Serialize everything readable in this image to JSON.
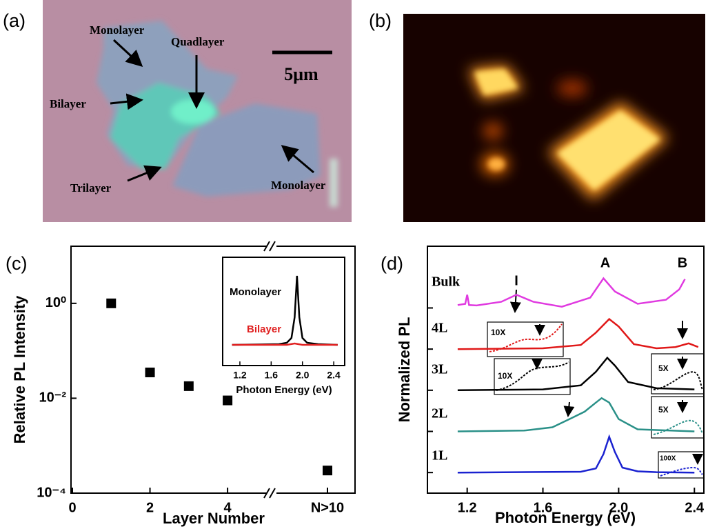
{
  "panel_labels": [
    "(a)",
    "(b)",
    "(c)",
    "(d)"
  ],
  "image_a": {
    "labels": [
      "Monolayer",
      "Quadlayer",
      "Bilayer",
      "Trilayer",
      "Monolayer"
    ],
    "scale_bar": "5μm"
  },
  "chart_data": [
    {
      "type": "scatter",
      "x_label": "Layer Number",
      "y_label": "Relative PL Intensity",
      "x": [
        1,
        2,
        3,
        4,
        "N>10"
      ],
      "values": [
        1,
        0.035,
        0.018,
        0.009,
        0.0003
      ],
      "color": "#000000",
      "log_y": true,
      "ylim": [
        0.0001,
        16
      ],
      "yticks": [
        {
          "value": 1,
          "label": "10⁰"
        },
        {
          "value": 0.01,
          "label": "10⁻²"
        },
        {
          "value": 0.0001,
          "label": "10⁻⁴"
        }
      ],
      "xlim": [
        0,
        5.1
      ],
      "xticks": [
        0,
        2,
        4,
        "N>10"
      ],
      "inset": {
        "type": "line",
        "x_label": "Photon Energy (eV)",
        "xlim": [
          0.98,
          2.54
        ],
        "xticks": [
          1.2,
          1.6,
          {
            "value": 2,
            "label": "2.0"
          },
          2.4
        ],
        "ylim": [
          -0.3,
          1.27
        ],
        "series": [
          {
            "name": "Monolayer",
            "color": "#000000",
            "x": [
              1.1,
              1.7,
              1.8,
              1.86,
              1.9,
              1.93,
              1.96,
              2.0,
              2.06,
              2.2,
              2.45
            ],
            "values": [
              0,
              0.01,
              0.03,
              0.1,
              0.4,
              1,
              0.4,
              0.1,
              0.03,
              0.01,
              0
            ]
          },
          {
            "name": "Bilayer",
            "color": "#e02020",
            "x": [
              1.1,
              1.8,
              1.9,
              2.0,
              2.45
            ],
            "values": [
              0,
              0,
              0.02,
              0,
              0
            ]
          }
        ]
      }
    },
    {
      "type": "line",
      "x_label": "Photon Energy (eV)",
      "y_label": "Normalized PL",
      "xlim": [
        0.99,
        2.45
      ],
      "xticks": [
        1.2,
        1.6,
        {
          "value": 2,
          "label": "2.0"
        },
        2.4
      ],
      "ylim": [
        0,
        6
      ],
      "yticks": [
        0.5,
        1.5,
        2.5,
        3.5,
        4.5
      ],
      "annotations": [
        "I",
        "A",
        "B"
      ],
      "magnifications": [
        "10X",
        "10X",
        "5X",
        "5X",
        "100X"
      ],
      "series": [
        {
          "name": "Bulk",
          "color": "#e03ae0",
          "x": [
            1.15,
            1.19,
            1.2,
            1.21,
            1.25,
            1.38,
            1.46,
            1.55,
            1.7,
            1.85,
            1.92,
            1.98,
            2.1,
            2.25,
            2.32,
            2.35
          ],
          "values": [
            4.57,
            4.6,
            4.82,
            4.57,
            4.56,
            4.65,
            4.82,
            4.65,
            4.53,
            4.75,
            5.22,
            4.9,
            4.6,
            4.7,
            4.95,
            5.2
          ]
        },
        {
          "name": "4L",
          "color": "#e01818",
          "x": [
            1.15,
            1.6,
            1.8,
            1.88,
            1.95,
            2.0,
            2.08,
            2.2,
            2.3,
            2.37,
            2.42
          ],
          "values": [
            3.5,
            3.52,
            3.6,
            3.9,
            4.23,
            4.05,
            3.62,
            3.52,
            3.55,
            3.64,
            3.55
          ]
        },
        {
          "name": "3L",
          "color": "#000000",
          "x": [
            1.15,
            1.6,
            1.8,
            1.88,
            1.94,
            1.98,
            2.05,
            2.2,
            2.4
          ],
          "values": [
            2.5,
            2.52,
            2.62,
            2.95,
            3.29,
            3.1,
            2.7,
            2.55,
            2.52
          ]
        },
        {
          "name": "2L",
          "color": "#2a9088",
          "x": [
            1.15,
            1.5,
            1.65,
            1.75,
            1.82,
            1.88,
            1.91,
            1.95,
            2.0,
            2.1,
            2.4
          ],
          "values": [
            1.5,
            1.52,
            1.6,
            1.82,
            1.98,
            2.2,
            2.31,
            2.2,
            1.8,
            1.55,
            1.5
          ]
        },
        {
          "name": "1L",
          "color": "#1a22d0",
          "x": [
            1.15,
            1.8,
            1.88,
            1.92,
            1.95,
            1.98,
            2.02,
            2.1,
            2.2,
            2.4
          ],
          "values": [
            0.5,
            0.52,
            0.6,
            0.95,
            1.37,
            1.0,
            0.62,
            0.53,
            0.51,
            0.5
          ]
        }
      ]
    }
  ]
}
